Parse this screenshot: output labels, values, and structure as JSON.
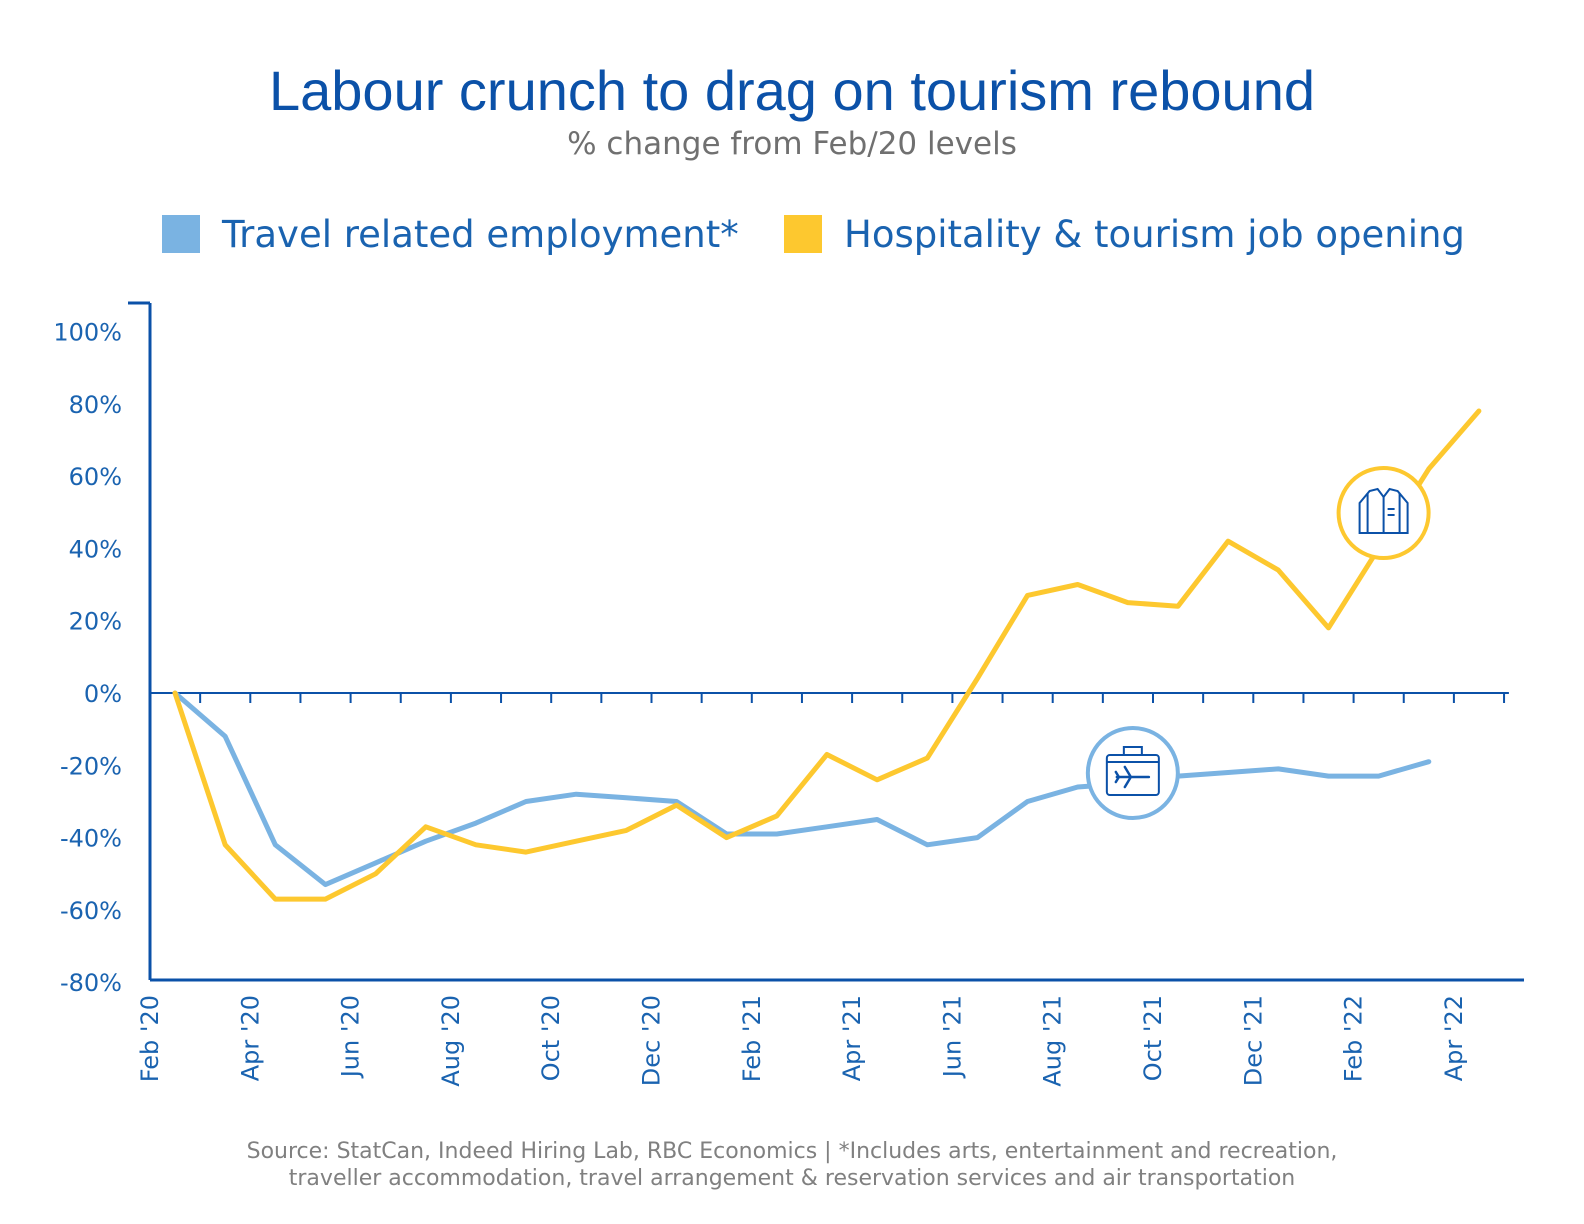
{
  "colors": {
    "travel": "#7ab3e2",
    "hospitality": "#fdc82f",
    "axis": "#0b51a8",
    "text": "#1a63b0"
  },
  "icons": {
    "hospitality": "shirt-icon",
    "travel": "suitcase-plane-icon"
  },
  "chart_data": {
    "type": "line",
    "title": "Labour crunch to drag on tourism rebound",
    "subtitle": "% change from Feb/20 levels",
    "xlabel": "",
    "ylabel": "",
    "ylim": [
      -80,
      100
    ],
    "yticks": [
      "100%",
      "80%",
      "60%",
      "40%",
      "20%",
      "0%",
      "-20%",
      "-40%",
      "-60%",
      "-80%"
    ],
    "ytick_values": [
      100,
      80,
      60,
      40,
      20,
      0,
      -20,
      -40,
      -60,
      -80
    ],
    "x_labels": [
      "Feb '20",
      "Apr '20",
      "Jun '20",
      "Aug '20",
      "Oct '20",
      "Dec '20",
      "Feb '21",
      "Apr '21",
      "Jun '21",
      "Aug '21",
      "Oct '21",
      "Dec '21",
      "Feb '22",
      "Apr '22"
    ],
    "months": [
      "Feb 2020",
      "Mar 2020",
      "Apr 2020",
      "May 2020",
      "Jun 2020",
      "Jul 2020",
      "Aug 2020",
      "Sep 2020",
      "Oct 2020",
      "Nov 2020",
      "Dec 2020",
      "Jan 2021",
      "Feb 2021",
      "Mar 2021",
      "Apr 2021",
      "May 2021",
      "Jun 2021",
      "Jul 2021",
      "Aug 2021",
      "Sep 2021",
      "Oct 2021",
      "Nov 2021",
      "Dec 2021",
      "Jan 2022",
      "Feb 2022",
      "Mar 2022",
      "Apr 2022"
    ],
    "grid": false,
    "legend": "top",
    "series": [
      {
        "name": "Travel related employment*",
        "values": [
          0,
          -12,
          -42,
          -53,
          -47,
          -41,
          -36,
          -30,
          -28,
          -29,
          -30,
          -39,
          -39,
          -37,
          -35,
          -42,
          -40,
          -30,
          -26,
          -25,
          -23,
          -22,
          -21,
          -23,
          -23,
          -19,
          null
        ]
      },
      {
        "name": "Hospitality & tourism job opening",
        "values": [
          0,
          -42,
          -57,
          -57,
          -50,
          -37,
          -42,
          -44,
          -41,
          -38,
          -31,
          -40,
          -34,
          -17,
          -24,
          -18,
          4,
          27,
          30,
          25,
          24,
          42,
          34,
          18,
          40,
          62,
          78
        ]
      }
    ]
  },
  "source": {
    "line1": "Source: StatCan, Indeed Hiring Lab, RBC Economics | *Includes arts, entertainment and recreation,",
    "line2": "traveller accommodation, travel arrangement & reservation services and air transportation"
  }
}
